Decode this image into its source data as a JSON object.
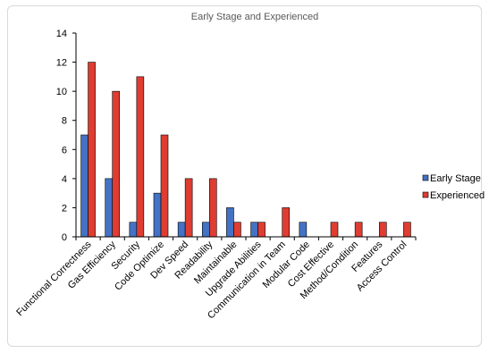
{
  "chart_data": {
    "type": "bar",
    "title": "Early Stage and Experienced",
    "xlabel": "",
    "ylabel": "",
    "ylim": [
      0,
      14
    ],
    "yticks": [
      0,
      2,
      4,
      6,
      8,
      10,
      12,
      14
    ],
    "grid": false,
    "legend_position": "right",
    "categories": [
      "Functional Correctness",
      "Gas Efficiency",
      "Security",
      "Code Optimize",
      "Dev Speed",
      "Readability",
      "Maintainable",
      "Upgrade Abilities",
      "Communication in Team",
      "Modular Code",
      "Cost Effective",
      "Method/Condition",
      "Features",
      "Access Control"
    ],
    "series": [
      {
        "name": "Early Stage",
        "color": "#4472C4",
        "values": [
          7,
          4,
          1,
          3,
          1,
          1,
          2,
          1,
          0,
          1,
          0,
          0,
          0,
          0
        ]
      },
      {
        "name": "Experienced",
        "color": "#E03C31",
        "values": [
          12,
          10,
          11,
          7,
          4,
          4,
          1,
          1,
          2,
          0,
          1,
          1,
          1,
          1
        ]
      }
    ]
  }
}
